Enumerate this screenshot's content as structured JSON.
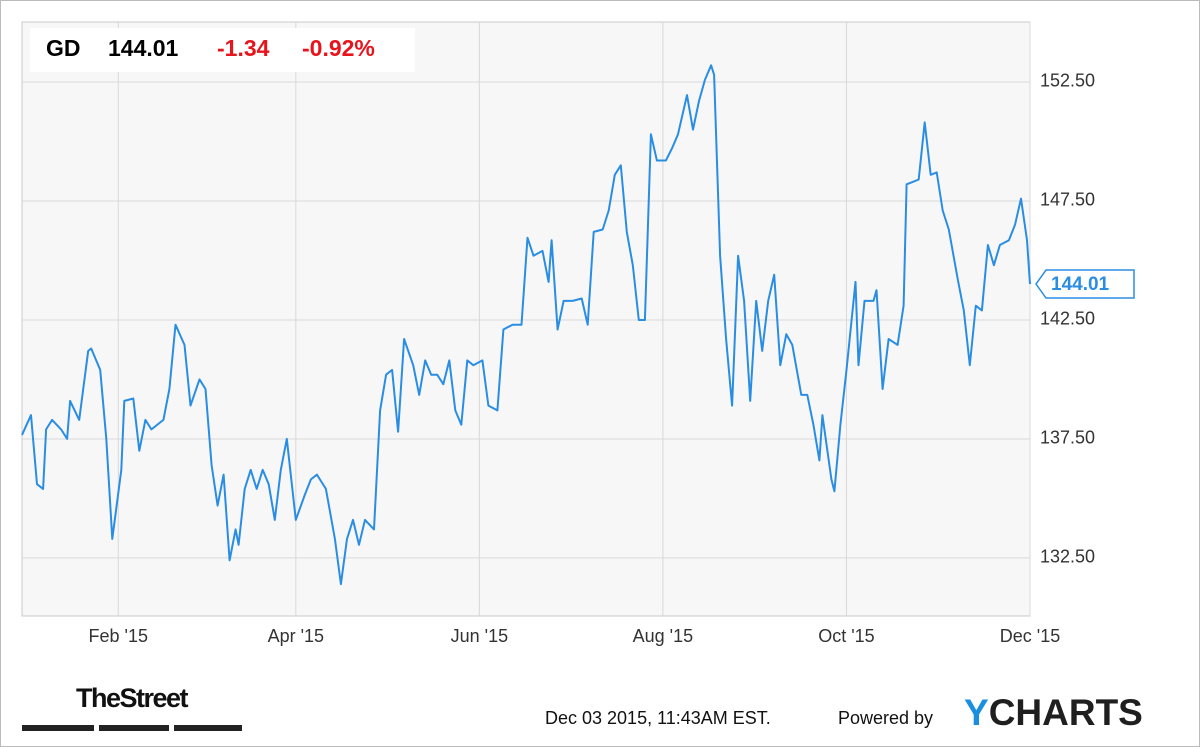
{
  "header": {
    "symbol": "GD",
    "price": "144.01",
    "change": "-1.34",
    "change_percent": "-0.92%"
  },
  "chart_data": {
    "type": "line",
    "x": [
      -1,
      2,
      4,
      6,
      7,
      9,
      12,
      14,
      15,
      18,
      21,
      22,
      25,
      27,
      29,
      32,
      33,
      36,
      38,
      40,
      42,
      46,
      48,
      50,
      53,
      55,
      58,
      60,
      62,
      64,
      66,
      68,
      70,
      71,
      73,
      75,
      77,
      79,
      81,
      83,
      85,
      87,
      90,
      93,
      95,
      97,
      100,
      103,
      105,
      107,
      109,
      111,
      113,
      116,
      118,
      120,
      122,
      124,
      126,
      129,
      131,
      133,
      135,
      137,
      139,
      141,
      143,
      145,
      147,
      149,
      152,
      154,
      157,
      159,
      162,
      165,
      167,
      169,
      172,
      174,
      175,
      177,
      179,
      182,
      185,
      187,
      189,
      192,
      194,
      196,
      198,
      200,
      202,
      204,
      206,
      208,
      210,
      213,
      215,
      217,
      220,
      222,
      224,
      226,
      228,
      229,
      231,
      233,
      235,
      237,
      239,
      241,
      243,
      245,
      247,
      249,
      251,
      253,
      255,
      258,
      260,
      262,
      264,
      265,
      268,
      269,
      271,
      273,
      276,
      277,
      279,
      282,
      283,
      285,
      287,
      290,
      292,
      293,
      295,
      297,
      299,
      301,
      303,
      305,
      307,
      310,
      312,
      314,
      316,
      318,
      320,
      322,
      324,
      327,
      329,
      331,
      333,
      334
    ],
    "series": [
      {
        "name": "GD",
        "color": "#2a8de4",
        "values": [
          137.67,
          138.5,
          135.6,
          135.4,
          137.9,
          138.3,
          137.9,
          137.5,
          139.1,
          138.3,
          141.2,
          141.3,
          140.4,
          137.5,
          133.3,
          136.2,
          139.1,
          139.2,
          137.0,
          138.3,
          137.9,
          138.3,
          139.6,
          142.3,
          141.45,
          138.9,
          140.0,
          139.6,
          136.4,
          134.7,
          136.0,
          132.4,
          133.7,
          133.05,
          135.4,
          136.2,
          135.4,
          136.2,
          135.6,
          134.1,
          136.2,
          137.5,
          134.1,
          135.15,
          135.8,
          136.0,
          135.4,
          133.3,
          131.4,
          133.3,
          134.1,
          133.05,
          134.1,
          133.7,
          138.7,
          140.2,
          140.4,
          137.8,
          141.7,
          140.6,
          139.35,
          140.8,
          140.2,
          140.2,
          139.8,
          140.8,
          138.7,
          138.1,
          140.8,
          140.6,
          140.8,
          138.9,
          138.7,
          142.1,
          142.3,
          142.3,
          145.95,
          145.2,
          145.4,
          144.1,
          145.85,
          142.1,
          143.3,
          143.3,
          143.4,
          142.3,
          146.2,
          146.3,
          147.1,
          148.6,
          149.0,
          146.2,
          144.8,
          142.5,
          142.5,
          150.3,
          149.2,
          149.2,
          149.7,
          150.3,
          151.95,
          150.5,
          151.7,
          152.6,
          153.2,
          152.8,
          145.2,
          141.7,
          138.9,
          145.2,
          143.3,
          139.1,
          143.3,
          141.2,
          143.3,
          144.4,
          140.6,
          141.9,
          141.45,
          139.35,
          139.35,
          138.1,
          136.6,
          138.5,
          135.8,
          135.3,
          138.1,
          140.4,
          144.1,
          140.6,
          143.3,
          143.3,
          143.75,
          139.6,
          141.7,
          141.45,
          143.1,
          148.2,
          148.3,
          148.4,
          150.8,
          148.6,
          148.7,
          147.1,
          146.3,
          144.2,
          142.9,
          140.6,
          143.1,
          142.9,
          145.65,
          144.8,
          145.65,
          145.85,
          146.5,
          147.6,
          145.85,
          144.01
        ]
      }
    ],
    "xlim": [
      -1,
      334
    ],
    "ylim": [
      130.06,
      155.02
    ],
    "xticks": [
      {
        "value": 31,
        "label": "Feb '15"
      },
      {
        "value": 90,
        "label": "Apr '15"
      },
      {
        "value": 151,
        "label": "Jun '15"
      },
      {
        "value": 212,
        "label": "Aug '15"
      },
      {
        "value": 273,
        "label": "Oct '15"
      },
      {
        "value": 334,
        "label": "Dec '15"
      }
    ],
    "yticks": [
      {
        "value": 132.5,
        "label": "132.50"
      },
      {
        "value": 137.5,
        "label": "137.50"
      },
      {
        "value": 142.5,
        "label": "142.50"
      },
      {
        "value": 147.5,
        "label": "147.50"
      },
      {
        "value": 152.5,
        "label": "152.50"
      }
    ],
    "grid": true
  },
  "footer": {
    "brand": "TheStreet",
    "timestamp": "Dec 03 2015, 11:43AM EST.",
    "powered_by": "Powered by",
    "provider": "YCHARTS"
  }
}
